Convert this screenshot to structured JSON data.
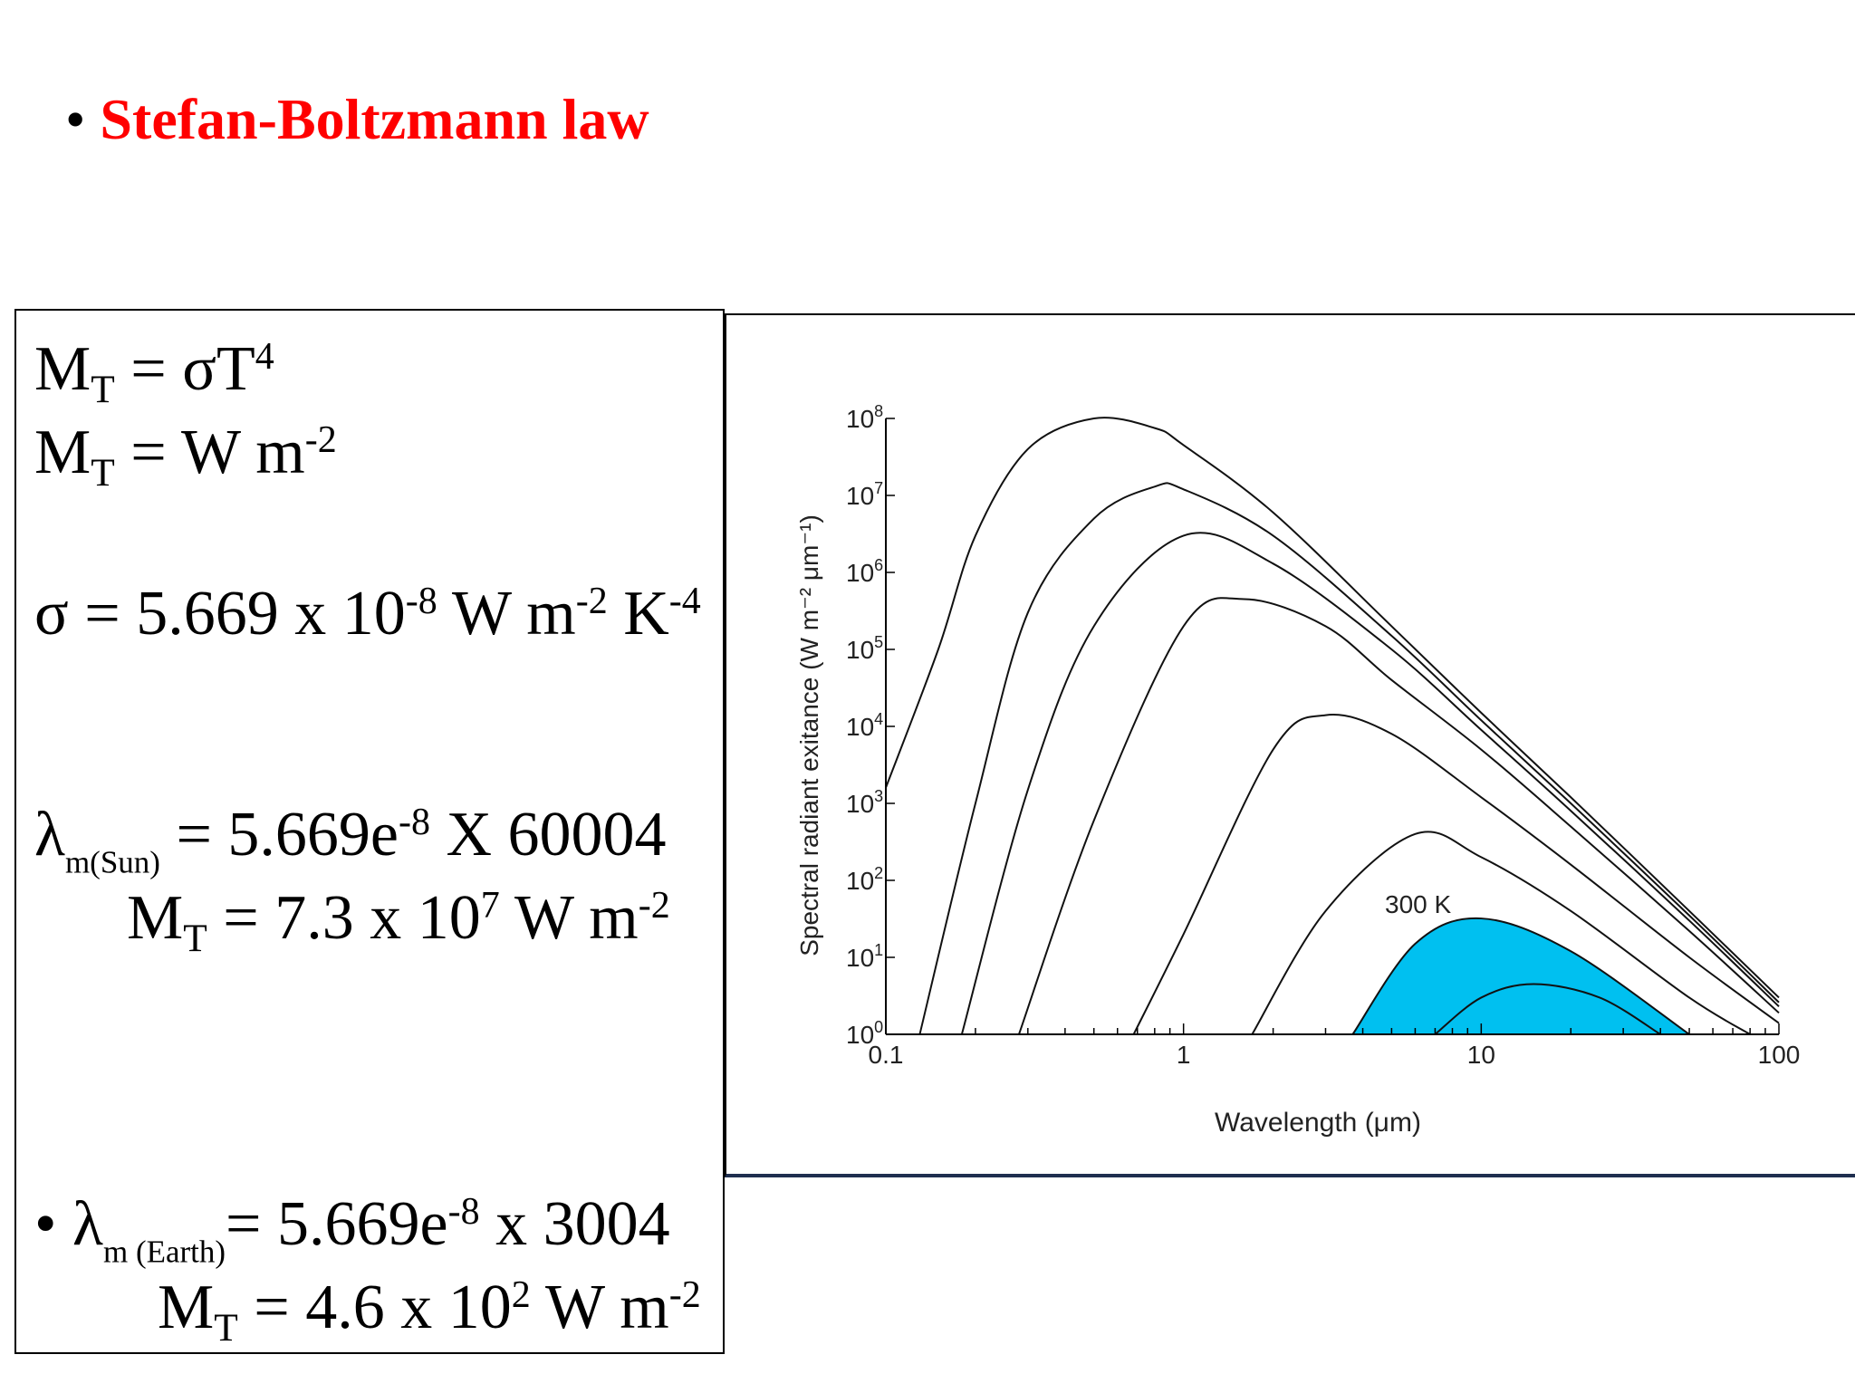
{
  "heading": {
    "bullet": "•",
    "title": "Stefan-Boltzmann law"
  },
  "equations": {
    "e1": {
      "m": "M",
      "sub": "T",
      "eq": " = σT",
      "sup": "4"
    },
    "e2": {
      "m": "M",
      "sub": "T",
      "eq": " = W m",
      "sup": "-2"
    },
    "e3": {
      "pre": "σ = 5.669 x 10",
      "sup1": "-8",
      "mid": " W m",
      "sup2": "-2",
      "mid2": " K",
      "sup3": "-4"
    },
    "sun1": {
      "lam": "λ",
      "sub": "m(Sun)",
      "pre": " = 5.669e",
      "sup": "-8",
      "post": " X 60004"
    },
    "sun2": {
      "m": "M",
      "sub": "T",
      "pre": " = 7.3 x 10",
      "sup1": "7",
      "mid": " W m",
      "sup2": "-2"
    },
    "earth1": {
      "bullet": "•",
      "lam": "λ",
      "sub": "m (Earth)",
      "pre": "= 5.669e",
      "sup": "-8",
      "post": " x 3004"
    },
    "earth2": {
      "m": "M",
      "sub": "T",
      "pre": " = 4.6 x 10",
      "sup1": "2",
      "mid": " W m",
      "sup2": "-2"
    }
  },
  "chart_data": {
    "type": "line",
    "xlabel": "Wavelength (μm)",
    "ylabel": "Spectral radiant exitance (W m⁻² μm⁻¹)",
    "x_scale": "log",
    "y_scale": "log",
    "xlim": [
      0.1,
      100
    ],
    "ylim": [
      1,
      100000000
    ],
    "x_ticks": [
      "0.1",
      "1",
      "10",
      "100"
    ],
    "y_ticks": [
      {
        "base": "10",
        "exp": "0"
      },
      {
        "base": "10",
        "exp": "1"
      },
      {
        "base": "10",
        "exp": "2"
      },
      {
        "base": "10",
        "exp": "3"
      },
      {
        "base": "10",
        "exp": "4"
      },
      {
        "base": "10",
        "exp": "5"
      },
      {
        "base": "10",
        "exp": "6"
      },
      {
        "base": "10",
        "exp": "7"
      },
      {
        "base": "10",
        "exp": "8"
      }
    ],
    "annotation": "300 K",
    "fill_color": "#00c0f0",
    "series": [
      {
        "x": [
          0.1,
          0.15,
          0.2,
          0.3,
          0.5,
          0.8,
          1,
          2,
          5,
          10,
          20,
          50,
          100
        ],
        "y": [
          1600,
          100000,
          3000000,
          40000000,
          100000000,
          75000000,
          45000000,
          6000000,
          200000,
          15000,
          1200,
          40,
          3
        ]
      },
      {
        "x": [
          0.13,
          0.2,
          0.3,
          0.5,
          0.8,
          1,
          2,
          5,
          10,
          20,
          50,
          100
        ],
        "y": [
          1,
          1000,
          300000,
          5000000,
          13000000,
          12000000,
          3000000,
          150000,
          12000,
          1000,
          35,
          2.6
        ]
      },
      {
        "x": [
          0.18,
          0.3,
          0.5,
          1,
          2,
          5,
          10,
          20,
          50,
          100
        ],
        "y": [
          1,
          1500,
          200000,
          3000000,
          1300000,
          100000,
          9000,
          800,
          30,
          2.3
        ]
      },
      {
        "x": [
          0.28,
          0.5,
          1,
          1.6,
          3,
          5,
          10,
          20,
          50,
          100
        ],
        "y": [
          1,
          600,
          200000,
          450000,
          200000,
          40000,
          5000,
          500,
          22,
          1.9
        ]
      },
      {
        "x": [
          0.68,
          1,
          2,
          3,
          5,
          10,
          20,
          50,
          100
        ],
        "y": [
          1,
          20,
          5000,
          14000,
          8000,
          1200,
          160,
          10,
          1.4
        ]
      },
      {
        "x": [
          1.7,
          3,
          6,
          10,
          20,
          50,
          80
        ],
        "y": [
          1,
          40,
          400,
          200,
          40,
          3,
          1
        ]
      },
      {
        "x": [
          3.7,
          6,
          10,
          20,
          50
        ],
        "y": [
          1,
          15,
          32,
          12,
          1
        ],
        "filled": true,
        "name": "300 K"
      },
      {
        "x": [
          7,
          10,
          15,
          25,
          40
        ],
        "y": [
          1,
          3,
          4.5,
          3,
          1
        ],
        "filled": true
      }
    ]
  }
}
